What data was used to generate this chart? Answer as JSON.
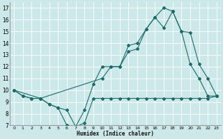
{
  "xlabel": "Humidex (Indice chaleur)",
  "xlim": [
    -0.5,
    23.5
  ],
  "ylim": [
    7,
    17.5
  ],
  "xtick_vals": [
    0,
    1,
    2,
    3,
    4,
    5,
    6,
    7,
    8,
    9,
    10,
    11,
    12,
    13,
    14,
    15,
    16,
    17,
    18,
    19,
    20,
    21,
    22,
    23
  ],
  "ytick_vals": [
    7,
    8,
    9,
    10,
    11,
    12,
    13,
    14,
    15,
    16,
    17
  ],
  "bg_color": "#cce8e8",
  "line_color": "#1a6b6b",
  "grid_color": "#ffffff",
  "series1_x": [
    0,
    1,
    2,
    3,
    4,
    5,
    6,
    7,
    8,
    9,
    10,
    11,
    12,
    13,
    14,
    15,
    16,
    17,
    18,
    19,
    20,
    21,
    22,
    23
  ],
  "series1_y": [
    10.0,
    9.5,
    9.3,
    9.3,
    8.8,
    8.5,
    7.0,
    6.9,
    8.3,
    10.5,
    12.0,
    12.0,
    12.0,
    13.8,
    14.0,
    15.2,
    16.2,
    15.3,
    16.7,
    15.0,
    12.2,
    11.0,
    9.5,
    9.5
  ],
  "series2_x": [
    0,
    1,
    2,
    3,
    4,
    5,
    6,
    7,
    8,
    9,
    10,
    11,
    12,
    13,
    14,
    15,
    16,
    17,
    18,
    19,
    20,
    21,
    22,
    23
  ],
  "series2_y": [
    10.0,
    9.5,
    9.3,
    9.3,
    8.8,
    8.5,
    8.3,
    6.9,
    7.2,
    9.3,
    9.3,
    9.3,
    9.3,
    9.3,
    9.3,
    9.3,
    9.3,
    9.3,
    9.3,
    9.3,
    9.3,
    9.3,
    9.3,
    9.5
  ],
  "series3_x": [
    0,
    3,
    10,
    11,
    12,
    13,
    14,
    15,
    16,
    17,
    18,
    19,
    20,
    21,
    22,
    23
  ],
  "series3_y": [
    10.0,
    9.3,
    11.0,
    12.0,
    12.0,
    13.3,
    13.5,
    15.2,
    16.2,
    17.0,
    16.7,
    15.0,
    14.9,
    12.2,
    11.0,
    9.5
  ]
}
